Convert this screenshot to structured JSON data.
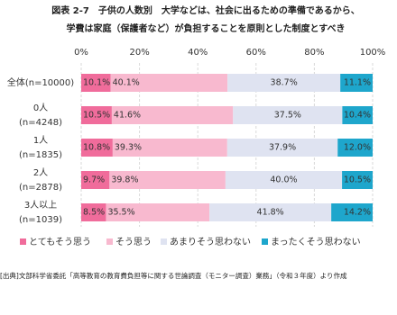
{
  "chart_data": {
    "type": "stacked-bar-horizontal",
    "title": "図表 2-7　子供の人数別　大学などは、社会に出るための準備であるから、",
    "subtitle": "学費は家庭（保護者など）が負担することを原則とした制度とすべき",
    "source": "[出典]文部科学省委託「高等教育の教育費負担等に関する世論調査（モニター調査）業務」（令和３年度）より作成",
    "categories": [
      [
        "全体(n=10000)"
      ],
      [
        "0人",
        "(n=4248)"
      ],
      [
        "1人",
        "(n=1835)"
      ],
      [
        "2人",
        "(n=2878)"
      ],
      [
        "3人以上",
        "(n=1039)"
      ]
    ],
    "xlim": [
      0,
      100
    ],
    "xticks": [
      {
        "value": 0,
        "label": "0%"
      },
      {
        "value": 20,
        "label": "20%"
      },
      {
        "value": 40,
        "label": "40%"
      },
      {
        "value": 60,
        "label": "60%"
      },
      {
        "value": 80,
        "label": "80%"
      },
      {
        "value": 100,
        "label": "100%"
      }
    ],
    "grid": true,
    "legend": "bottom",
    "series": [
      {
        "name": "とてもそう思う",
        "color": "#f06c9b",
        "values": [
          10.1,
          10.5,
          10.8,
          9.7,
          8.5
        ],
        "value_labels": [
          "10.1%",
          "10.5%",
          "10.8%",
          "9.7%",
          "8.5%"
        ]
      },
      {
        "name": "そう思う",
        "color": "#f8b9cf",
        "values": [
          40.1,
          41.6,
          39.3,
          39.8,
          35.5
        ],
        "value_labels": [
          "40.1%",
          "41.6%",
          "39.3%",
          "39.8%",
          "35.5%"
        ]
      },
      {
        "name": "あまりそう思わない",
        "color": "#dfe3f1",
        "values": [
          38.7,
          37.5,
          37.9,
          40.0,
          41.8
        ],
        "value_labels": [
          "38.7%",
          "37.5%",
          "37.9%",
          "40.0%",
          "41.8%"
        ]
      },
      {
        "name": "まったくそう思わない",
        "color": "#1ea6cc",
        "values": [
          11.1,
          10.4,
          12.0,
          10.5,
          14.2
        ],
        "value_labels": [
          "11.1%",
          "10.4%",
          "12.0%",
          "10.5%",
          "14.2%"
        ]
      }
    ]
  }
}
